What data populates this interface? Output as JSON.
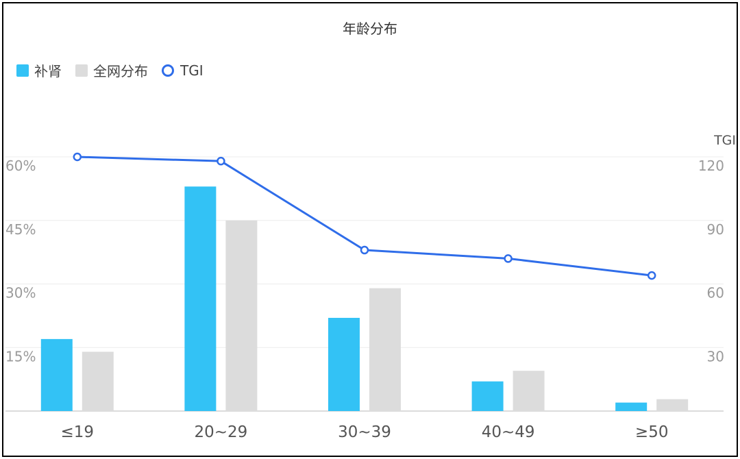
{
  "chart_data": {
    "type": "bar",
    "title": "年龄分布",
    "categories": [
      "≤19",
      "20~29",
      "30~39",
      "40~49",
      "≥50"
    ],
    "series": [
      {
        "name": "补肾",
        "kind": "bar",
        "axis": "left",
        "color": "#33c2f5",
        "values": [
          17,
          53,
          22,
          7,
          2
        ]
      },
      {
        "name": "全网分布",
        "kind": "bar",
        "axis": "left",
        "color": "#dcdcdc",
        "values": [
          14,
          45,
          29,
          9.5,
          2.8
        ]
      },
      {
        "name": "TGI",
        "kind": "line",
        "axis": "right",
        "color": "#2f6de9",
        "values": [
          120,
          118,
          76,
          72,
          64
        ]
      }
    ],
    "y_left": {
      "ylim": [
        0,
        60
      ],
      "ticks": [
        0,
        15,
        30,
        45,
        60
      ],
      "tick_labels": [
        "",
        "15%",
        "30%",
        "45%",
        "60%"
      ]
    },
    "y_right": {
      "label": "TGI",
      "ylim": [
        0,
        120
      ],
      "ticks": [
        0,
        30,
        60,
        90,
        120
      ],
      "tick_labels": [
        "",
        "30",
        "60",
        "90",
        "120"
      ]
    },
    "grid": true,
    "legend": "top-left"
  }
}
